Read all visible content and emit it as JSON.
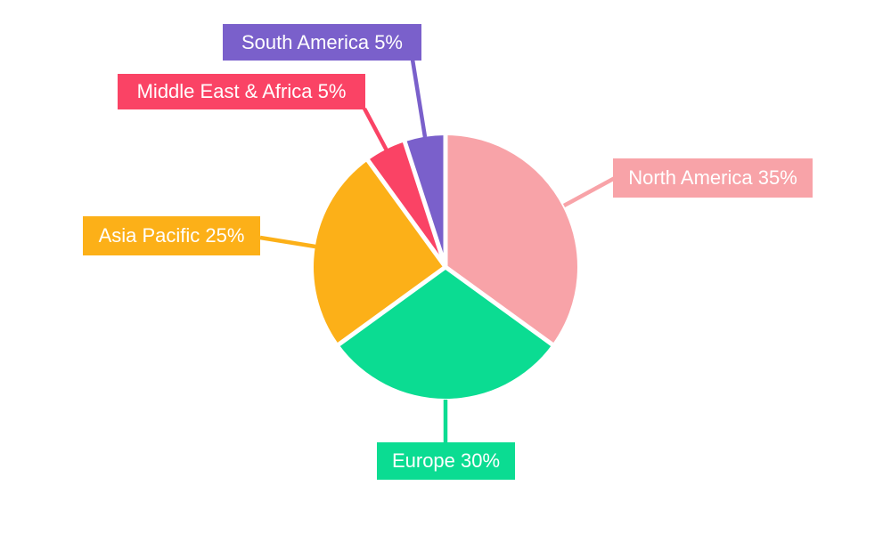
{
  "chart_data": {
    "type": "pie",
    "title": "",
    "total": 100,
    "start_angle_deg": 0,
    "direction": "clockwise",
    "legend_position": "none",
    "background": "#FFFFFF",
    "label_text_color": "#FFFFFF",
    "slice_gap_color": "#FFFFFF",
    "slices": [
      {
        "label": "North America",
        "value": 35,
        "display_label": "North America 35%",
        "color": "#F8A3A8"
      },
      {
        "label": "Europe",
        "value": 30,
        "display_label": "Europe 30%",
        "color": "#0BDC92"
      },
      {
        "label": "Asia Pacific",
        "value": 25,
        "display_label": "Asia Pacific 25%",
        "color": "#FCB018"
      },
      {
        "label": "Middle East & Africa",
        "value": 5,
        "display_label": "Middle East & Africa 5%",
        "color": "#FA4365"
      },
      {
        "label": "South America",
        "value": 5,
        "display_label": "South America 5%",
        "color": "#7A60CB"
      }
    ]
  }
}
